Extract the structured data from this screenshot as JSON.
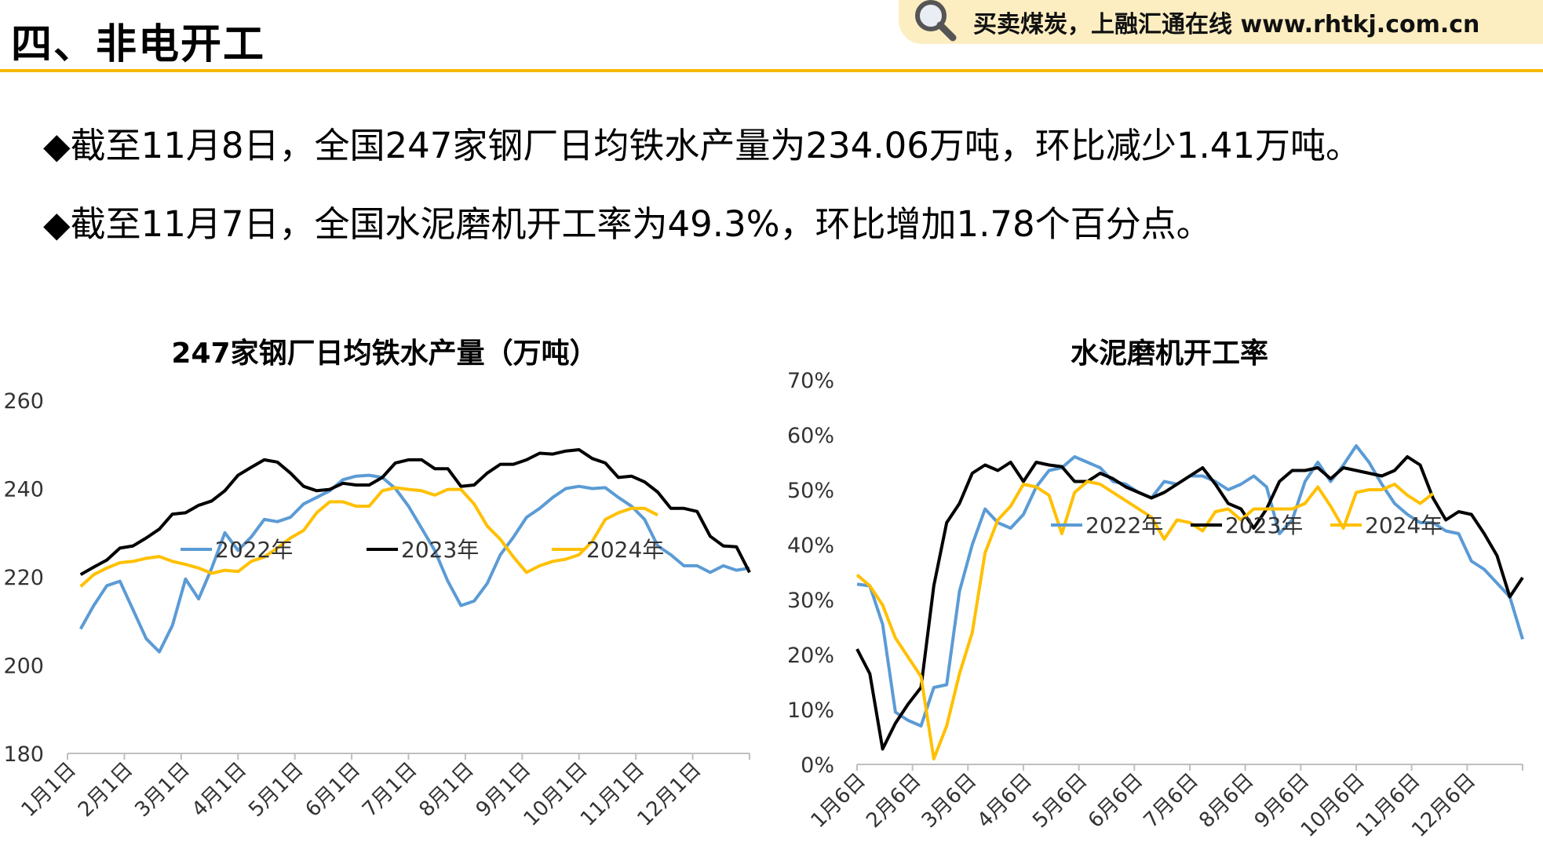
{
  "header": {
    "title": "四、非电开工",
    "banner_text": "买卖煤炭，上融汇通在线 www.rhtkj.com.cn"
  },
  "bullets": {
    "symbol": "◆",
    "line1": "截至11月8日，全国247家钢厂日均铁水产量为234.06万吨，环比减少1.41万吨。",
    "line2": "截至11月7日，全国水泥磨机开工率为49.3%，环比增加1.78个百分点。"
  },
  "colors": {
    "s2022": "#5b9bd5",
    "s2023": "#000000",
    "s2024": "#ffc000"
  },
  "chart_data": [
    {
      "type": "line",
      "title": "247家钢厂日均铁水产量（万吨）",
      "ylim": [
        180,
        260
      ],
      "yticks": [
        "180",
        "200",
        "220",
        "240",
        "260"
      ],
      "xlim": [
        0,
        52
      ],
      "x_tick_labels": [
        "1月1日",
        "2月1日",
        "3月1日",
        "4月1日",
        "5月1日",
        "6月1日",
        "7月1日",
        "8月1日",
        "9月1日",
        "10月1日",
        "11月1日",
        "12月1日"
      ],
      "legend": [
        "2022年",
        "2023年",
        "2024年"
      ],
      "series": [
        {
          "name": "2022年",
          "color": "#5b9bd5",
          "x_start": 1,
          "values": [
            208.2,
            213.5,
            218,
            219,
            212.5,
            206,
            203,
            209,
            219.5,
            215,
            222,
            230,
            226,
            229,
            233,
            232.5,
            233.5,
            236.5,
            238,
            239.5,
            242,
            242.8,
            243,
            242.5,
            240,
            236,
            231,
            226,
            219,
            213.5,
            214.5,
            218.5,
            225,
            229,
            233.5,
            235.5,
            238,
            240,
            240.5,
            240,
            240.2,
            238,
            236,
            233,
            227,
            225,
            222.5,
            222.5,
            221,
            222.5,
            221.5,
            222
          ]
        },
        {
          "name": "2023年",
          "color": "#000000",
          "x_start": 1,
          "values": [
            220.5,
            222.2,
            223.8,
            226.5,
            227,
            228.8,
            230.8,
            234.2,
            234.5,
            236.2,
            237.2,
            239.5,
            243,
            244.8,
            246.5,
            246,
            243.5,
            240.5,
            239.5,
            239.8,
            241.2,
            240.8,
            240.8,
            242.5,
            245.8,
            246.5,
            246.5,
            244.5,
            244.5,
            240.5,
            240.8,
            243.5,
            245.5,
            245.5,
            246.5,
            248,
            247.8,
            248.5,
            248.8,
            246.8,
            245.8,
            242.5,
            242.8,
            241.5,
            239.2,
            235.5,
            235.5,
            234.8,
            229.2,
            227,
            226.8,
            221
          ]
        },
        {
          "name": "2024年",
          "color": "#ffc000",
          "x_start": 1,
          "values": [
            217.8,
            220.5,
            222,
            223.2,
            223.5,
            224.2,
            224.6,
            223.5,
            222.8,
            222,
            220.8,
            221.5,
            221.2,
            223.5,
            224.5,
            226.5,
            228.8,
            230.5,
            234.5,
            237,
            237,
            236,
            236,
            239.5,
            240.2,
            239.8,
            239.5,
            238.5,
            239.8,
            239.8,
            236.5,
            231.5,
            228.5,
            224.5,
            221,
            222.5,
            223.5,
            224,
            225,
            228,
            233,
            234.5,
            235.5,
            235.5,
            234
          ]
        }
      ]
    },
    {
      "type": "line",
      "title": "水泥磨机开工率",
      "ylim": [
        0,
        70
      ],
      "yticks": [
        "0%",
        "10%",
        "20%",
        "30%",
        "40%",
        "50%",
        "60%",
        "70%"
      ],
      "xlim": [
        0,
        52
      ],
      "x_tick_labels": [
        "1月6日",
        "2月6日",
        "3月6日",
        "4月6日",
        "5月6日",
        "6月6日",
        "7月6日",
        "8月6日",
        "9月6日",
        "10月6日",
        "11月6日",
        "12月6日"
      ],
      "legend": [
        "2022年",
        "2023年",
        "2024年"
      ],
      "series": [
        {
          "name": "2022年",
          "color": "#5b9bd5",
          "x_start": 0,
          "values": [
            32.8,
            32.5,
            25.5,
            9.5,
            8,
            7,
            14,
            14.5,
            31.5,
            40,
            46.5,
            44,
            43,
            45.5,
            50.5,
            53.5,
            54,
            56,
            55,
            54,
            51.5,
            51,
            49.5,
            48.5,
            51.5,
            51,
            52.5,
            52.5,
            51.5,
            50,
            51,
            52.5,
            50.5,
            42,
            44.5,
            51.5,
            55,
            51.5,
            54.5,
            58,
            55,
            51,
            47.5,
            45.5,
            44,
            44,
            42.5,
            42,
            37,
            35.5,
            33,
            30.5,
            22.8
          ]
        },
        {
          "name": "2023年",
          "color": "#000000",
          "x_start": 0,
          "values": [
            21,
            16.5,
            2.8,
            7.5,
            11,
            14,
            32.5,
            44,
            47.5,
            53,
            54.5,
            53.5,
            55,
            51.5,
            55,
            54.5,
            54.2,
            51.5,
            51.5,
            53,
            52,
            50.5,
            49.5,
            48.5,
            49.5,
            51,
            52.5,
            54,
            51,
            47.5,
            46.5,
            43,
            46.5,
            51.5,
            53.5,
            53.5,
            54,
            52,
            54,
            53.5,
            53,
            52.5,
            53.5,
            56,
            54.5,
            48.5,
            44.5,
            46,
            45.5,
            42,
            38,
            30.5,
            34
          ]
        },
        {
          "name": "2024年",
          "color": "#ffc000",
          "x_start": 0,
          "values": [
            34.5,
            32.5,
            29,
            23,
            19.5,
            16,
            1,
            7,
            16.5,
            24,
            38.5,
            44.5,
            47,
            51,
            50.5,
            49,
            42,
            49.5,
            51.5,
            51,
            49.5,
            48,
            46.5,
            45,
            41,
            44.5,
            44,
            42.5,
            46,
            46.5,
            44.5,
            46.5,
            46.5,
            46.5,
            46.5,
            47.5,
            50.5,
            47,
            43,
            49.5,
            50,
            50,
            51,
            49,
            47.5,
            49.3
          ]
        }
      ]
    }
  ]
}
